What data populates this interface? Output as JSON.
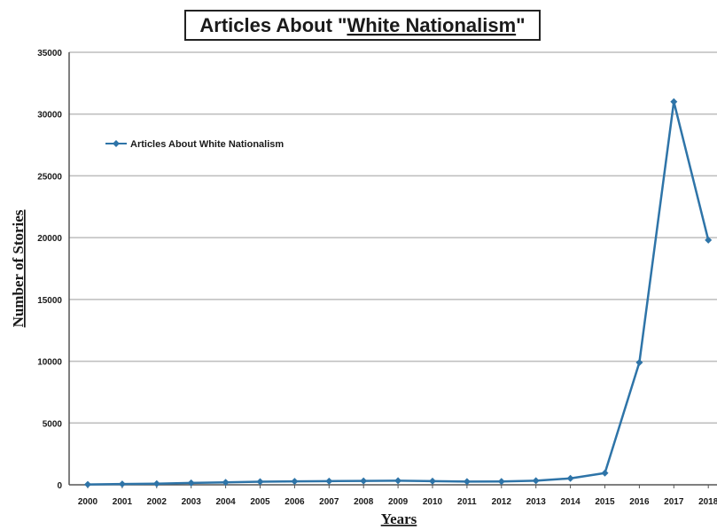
{
  "chart_data": {
    "type": "line",
    "title": {
      "prefix": "Articles About \"",
      "emphasis": "White Nationalism",
      "suffix": "\""
    },
    "xlabel": "Years",
    "ylabel": "Number of Stories",
    "categories": [
      "2000",
      "2001",
      "2002",
      "2003",
      "2004",
      "2005",
      "2006",
      "2007",
      "2008",
      "2009",
      "2010",
      "2011",
      "2012",
      "2013",
      "2014",
      "2015",
      "2016",
      "2017",
      "2018"
    ],
    "series": [
      {
        "name": "Articles About White Nationalism",
        "values": [
          30,
          60,
          90,
          150,
          200,
          250,
          280,
          300,
          310,
          330,
          300,
          260,
          270,
          330,
          520,
          950,
          9900,
          31000,
          19800
        ]
      }
    ],
    "ylim": [
      0,
      35000
    ],
    "yticks": [
      "0",
      "5000",
      "10000",
      "15000",
      "20000",
      "25000",
      "30000",
      "35000"
    ],
    "grid": true,
    "legend": "top-left",
    "colors": {
      "line": "#2e74a8",
      "grid": "#bdbdbd",
      "title_border": "#222222"
    }
  }
}
